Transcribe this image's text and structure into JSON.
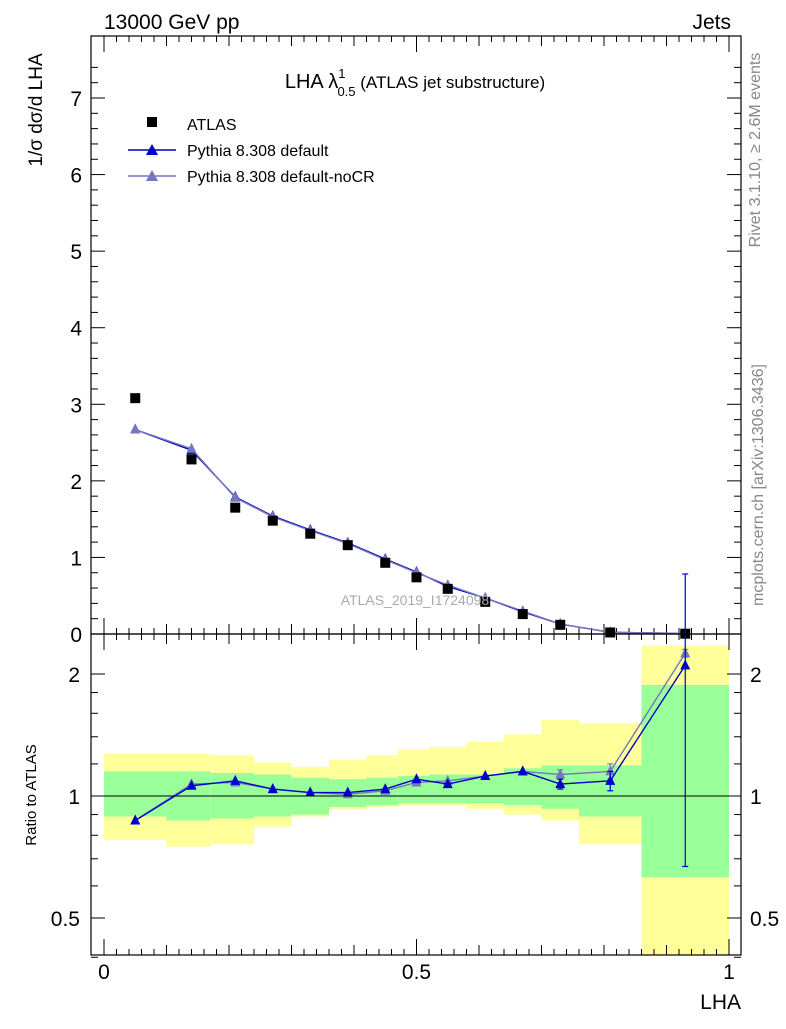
{
  "header": {
    "left": "13000 GeV pp",
    "right": "Jets"
  },
  "side_labels": {
    "rivet": "Rivet 3.1.10, ≥ 2.6M events",
    "mcplots": "mcplots.cern.ch [arXiv:1306.3436]"
  },
  "watermark": "ATLAS_2019_I1724098",
  "title": {
    "main": "LHA λ",
    "sup": "1",
    "sub": "0.5",
    "tail": " (ATLAS jet substructure)"
  },
  "axis": {
    "ylabel_top": "1/σ dσ/d LHA",
    "ylabel_bottom": "Ratio to ATLAS",
    "xlabel": "LHA"
  },
  "legend": [
    {
      "label": "ATLAS",
      "color": "#000000",
      "marker": "square-icon"
    },
    {
      "label": "Pythia 8.308 default",
      "color": "#0000cc",
      "marker": "triangle-icon"
    },
    {
      "label": "Pythia 8.308 default-noCR",
      "color": "#7777bb",
      "marker": "triangle-icon"
    }
  ],
  "colors": {
    "band_inner": "#99ff99",
    "band_outer": "#ffff99",
    "default": "#0000cc",
    "noCR": "#7777bb",
    "data": "#000000"
  },
  "chart_data": {
    "type": "line",
    "xlim": [
      0,
      1
    ],
    "ylim_top": [
      0,
      7.8
    ],
    "ylim_ratio": [
      0.35,
      2.35
    ],
    "yticks_top": [
      "0",
      "1",
      "2",
      "3",
      "4",
      "5",
      "6",
      "7"
    ],
    "yticks_ratio": [
      "0.5",
      "1",
      "2"
    ],
    "xticks": [
      "0",
      "0.5",
      "1"
    ],
    "x": [
      0.05,
      0.14,
      0.21,
      0.27,
      0.33,
      0.39,
      0.45,
      0.5,
      0.55,
      0.61,
      0.67,
      0.73,
      0.81,
      0.93
    ],
    "bin_edges": [
      0.0,
      0.1,
      0.17,
      0.24,
      0.3,
      0.36,
      0.42,
      0.47,
      0.52,
      0.58,
      0.64,
      0.7,
      0.76,
      0.86,
      1.0
    ],
    "series": [
      {
        "name": "ATLAS",
        "values": [
          3.08,
          2.28,
          1.65,
          1.48,
          1.31,
          1.16,
          0.93,
          0.74,
          0.59,
          0.42,
          0.26,
          0.12,
          0.02,
          0.004
        ]
      },
      {
        "name": "Pythia 8.308 default",
        "values": [
          2.67,
          2.4,
          1.79,
          1.54,
          1.36,
          1.19,
          0.98,
          0.81,
          0.62,
          0.47,
          0.29,
          0.13,
          0.022,
          0.008
        ]
      },
      {
        "name": "Pythia 8.308 default-noCR",
        "values": [
          2.67,
          2.42,
          1.78,
          1.53,
          1.35,
          1.18,
          0.97,
          0.8,
          0.64,
          0.47,
          0.3,
          0.13,
          0.022,
          0.009
        ]
      }
    ],
    "ratio": [
      {
        "name": "Pythia 8.308 default",
        "values": [
          0.87,
          1.06,
          1.09,
          1.04,
          1.02,
          1.02,
          1.04,
          1.1,
          1.07,
          1.12,
          1.15,
          1.07,
          1.09,
          2.1
        ],
        "err": [
          0.01,
          0.01,
          0.01,
          0.01,
          0.01,
          0.01,
          0.01,
          0.01,
          0.01,
          0.01,
          0.02,
          0.03,
          0.06,
          1.43
        ]
      },
      {
        "name": "Pythia 8.308 default-noCR",
        "values": [
          0.87,
          1.07,
          1.08,
          1.04,
          1.02,
          1.01,
          1.03,
          1.08,
          1.09,
          1.12,
          1.15,
          1.13,
          1.15,
          2.25
        ],
        "err": [
          0.01,
          0.01,
          0.01,
          0.01,
          0.01,
          0.01,
          0.01,
          0.01,
          0.01,
          0.01,
          0.02,
          0.03,
          0.05,
          0.05
        ]
      }
    ],
    "band_inner": [
      [
        0.89,
        1.15
      ],
      [
        0.87,
        1.15
      ],
      [
        0.88,
        1.14
      ],
      [
        0.89,
        1.13
      ],
      [
        0.9,
        1.11
      ],
      [
        0.94,
        1.1
      ],
      [
        0.95,
        1.11
      ],
      [
        0.96,
        1.12
      ],
      [
        0.96,
        1.13
      ],
      [
        0.96,
        1.13
      ],
      [
        0.95,
        1.17
      ],
      [
        0.93,
        1.19
      ],
      [
        0.89,
        1.19
      ],
      [
        0.63,
        1.88
      ]
    ],
    "band_outer": [
      [
        0.78,
        1.27
      ],
      [
        0.75,
        1.27
      ],
      [
        0.76,
        1.26
      ],
      [
        0.84,
        1.21
      ],
      [
        0.89,
        1.18
      ],
      [
        0.93,
        1.23
      ],
      [
        0.94,
        1.26
      ],
      [
        0.95,
        1.3
      ],
      [
        0.95,
        1.32
      ],
      [
        0.93,
        1.36
      ],
      [
        0.9,
        1.42
      ],
      [
        0.87,
        1.54
      ],
      [
        0.76,
        1.51
      ],
      [
        0.35,
        2.35
      ]
    ]
  }
}
